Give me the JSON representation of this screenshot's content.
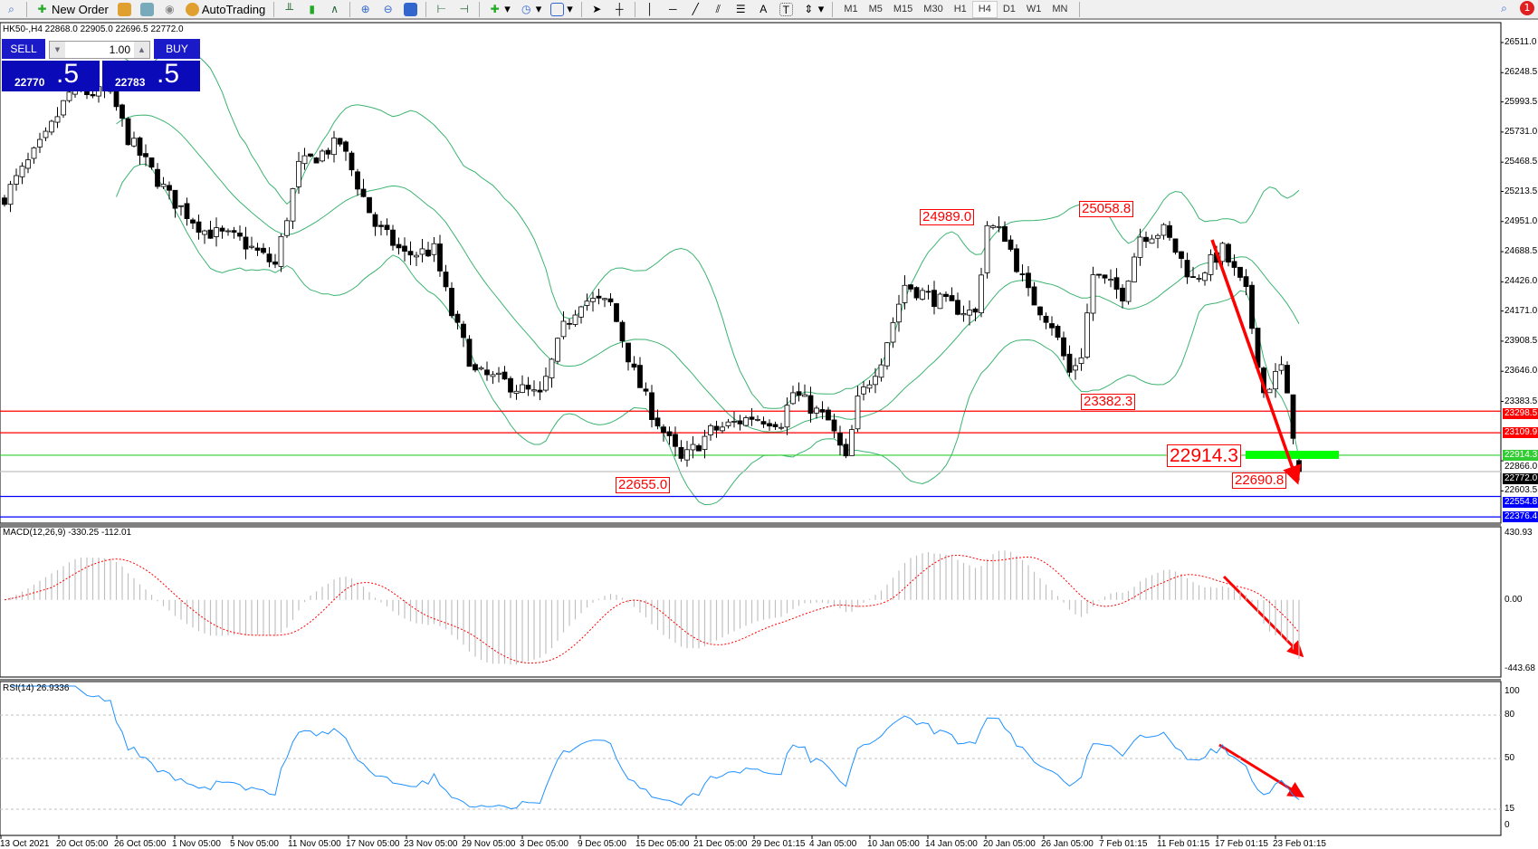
{
  "toolbar": {
    "new_order": "New Order",
    "autotrading": "AutoTrading",
    "timeframes": [
      "M1",
      "M5",
      "M15",
      "M30",
      "H1",
      "H4",
      "D1",
      "W1",
      "MN"
    ],
    "active_timeframe": "H4",
    "notifications": "1",
    "icons": [
      "zoom-icon",
      "new-order-icon",
      "experts-icon",
      "market-watch-icon",
      "signals-icon",
      "autotrading-icon",
      "bar-chart-icon",
      "candlestick-icon",
      "line-chart-icon",
      "zoom-in-icon",
      "zoom-out-icon",
      "tile-windows-icon",
      "chart-shift-icon",
      "autoscroll-icon",
      "indicators-icon",
      "periods-icon",
      "templates-icon",
      "cursor-icon",
      "crosshair-icon",
      "vertical-line-icon",
      "horizontal-line-icon",
      "trendline-icon",
      "channel-icon",
      "fibonacci-icon",
      "text-icon",
      "text-label-icon",
      "arrows-icon",
      "search-icon",
      "chat-icon"
    ]
  },
  "chart": {
    "symbol_line": "HK50-,H4  22868.0 22905.0 22696.5 22772.0",
    "trade_panel": {
      "sell": "SELL",
      "buy": "BUY",
      "lot": "1.00",
      "bid_main": "22770",
      "bid_pip": ".5",
      "ask_main": "22783",
      "ask_pip": ".5",
      "bg_color": "#0a0ab8"
    },
    "annotations": [
      "24989.0",
      "25058.8",
      "23382.3",
      "22655.0",
      "22914.3",
      "22690.8"
    ],
    "price_ticks": [
      "26511.0",
      "26248.5",
      "25993.5",
      "25731.0",
      "25468.5",
      "25213.5",
      "24951.0",
      "24688.5",
      "24426.0",
      "24171.0",
      "23908.5",
      "23646.0",
      "23383.5",
      "22866.0",
      "22603.5"
    ],
    "levels": [
      {
        "price": 23298.5,
        "label": "23298.5",
        "color": "#ff0000"
      },
      {
        "price": 23109.9,
        "label": "23109.9",
        "color": "#ff0000"
      },
      {
        "price": 22914.3,
        "label": "22914.3",
        "color": "#32cd32"
      },
      {
        "price": 22772.0,
        "label": "22772.0",
        "color": "#c0c0c0",
        "tag_color": "#000000"
      },
      {
        "price": 22554.8,
        "label": "22554.8",
        "color": "#0000ff"
      },
      {
        "price": 22376.4,
        "label": "22376.4",
        "color": "#0000ff"
      }
    ],
    "macd_label": "MACD(12,26,9) -330.25 -112.01",
    "macd_ticks": [
      "430.93",
      "0.00",
      "-443.68"
    ],
    "rsi_label": "RSI(14) 26.9336",
    "rsi_ticks": [
      "100",
      "80",
      "50",
      "15",
      "0"
    ],
    "dates": [
      "13 Oct 2021",
      "20 Oct 05:00",
      "26 Oct 05:00",
      "1 Nov 05:00",
      "5 Nov 05:00",
      "11 Nov 05:00",
      "17 Nov 05:00",
      "23 Nov 05:00",
      "29 Nov 05:00",
      "3 Dec 05:00",
      "9 Dec 05:00",
      "15 Dec 05:00",
      "21 Dec 05:00",
      "29 Dec 01:15",
      "4 Jan 05:00",
      "10 Jan 05:00",
      "14 Jan 05:00",
      "20 Jan 05:00",
      "26 Jan 05:00",
      "7 Feb 01:15",
      "11 Feb 01:15",
      "17 Feb 01:15",
      "23 Feb 01:15"
    ]
  },
  "chart_data": {
    "type": "candlestick",
    "symbol": "HK50-",
    "timeframe": "H4",
    "ylim": [
      22323,
      26684
    ],
    "macd_ylim": [
      -443.68,
      430.93
    ],
    "rsi_ylim": [
      0,
      100
    ],
    "rsi_levels": [
      80,
      50,
      15
    ],
    "bands_color": "#3cb371",
    "macd_signal_color": "#ff0000",
    "macd_hist_color": "#c0c0c0",
    "rsi_color": "#1e90ff",
    "approx_close_by_bar": [
      [
        0,
        25170
      ],
      [
        7,
        25680
      ],
      [
        11,
        26070
      ],
      [
        18,
        26070
      ],
      [
        21,
        25680
      ],
      [
        28,
        25170
      ],
      [
        34,
        24870
      ],
      [
        40,
        24790
      ],
      [
        46,
        24570
      ],
      [
        50,
        25430
      ],
      [
        57,
        25640
      ],
      [
        63,
        24920
      ],
      [
        68,
        24660
      ],
      [
        73,
        24700
      ],
      [
        76,
        24145
      ],
      [
        80,
        23630
      ],
      [
        85,
        23550
      ],
      [
        91,
        23420
      ],
      [
        95,
        24020
      ],
      [
        98,
        24270
      ],
      [
        103,
        24230
      ],
      [
        107,
        23630
      ],
      [
        110,
        23290
      ],
      [
        115,
        22860
      ],
      [
        120,
        23120
      ],
      [
        127,
        23250
      ],
      [
        132,
        23210
      ],
      [
        134,
        23460
      ],
      [
        140,
        23210
      ],
      [
        143,
        22860
      ],
      [
        145,
        23380
      ],
      [
        149,
        23760
      ],
      [
        153,
        24400
      ],
      [
        160,
        24230
      ],
      [
        165,
        24145
      ],
      [
        167,
        24920
      ],
      [
        170,
        24830
      ],
      [
        174,
        24320
      ],
      [
        178,
        24060
      ],
      [
        181,
        23630
      ],
      [
        183,
        23800
      ],
      [
        185,
        24490
      ],
      [
        190,
        24320
      ],
      [
        193,
        24830
      ],
      [
        197,
        24870
      ],
      [
        202,
        24440
      ],
      [
        207,
        24700
      ],
      [
        211,
        24320
      ],
      [
        214,
        23460
      ],
      [
        217,
        23680
      ],
      [
        219,
        23120
      ],
      [
        220,
        22772
      ]
    ],
    "last_ohlc": {
      "open": 22868.0,
      "high": 22905.0,
      "low": 22696.5,
      "close": 22772.0
    }
  }
}
